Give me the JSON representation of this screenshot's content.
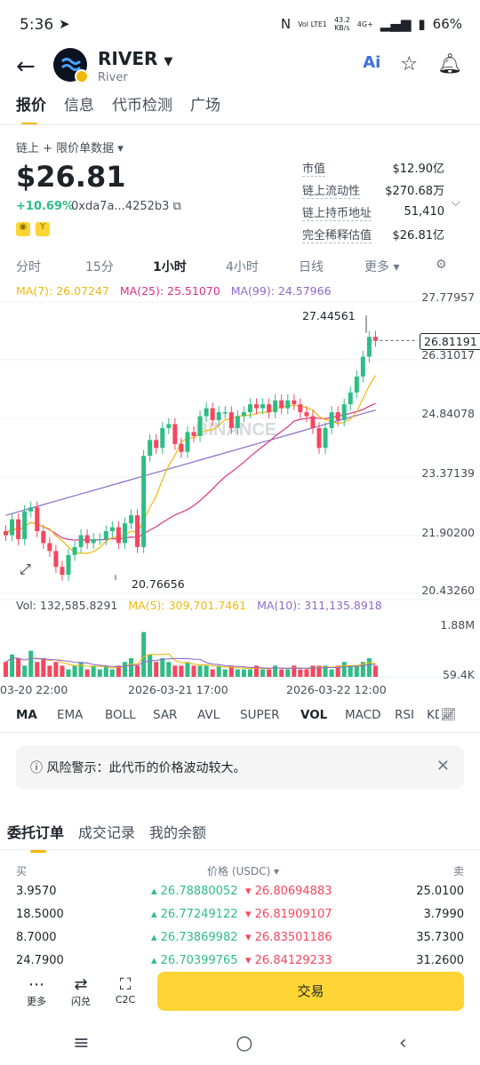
{
  "status": {
    "time": "5:36",
    "battery": "66%",
    "net_speed": "43.2",
    "net_unit": "KB/s",
    "net_type": "4G+",
    "volte": "Vol LTE1"
  },
  "header": {
    "symbol": "RIVER",
    "subtitle": "River"
  },
  "tabs": [
    "报价",
    "信息",
    "代币检测",
    "广场"
  ],
  "data_source": "链上 + 限价单数据",
  "price": "$26.81",
  "change": "+10.69%",
  "contract": "0xda7a...4252b3",
  "stats": [
    {
      "k": "市值",
      "v": "$12.90亿"
    },
    {
      "k": "链上流动性",
      "v": "$270.68万"
    },
    {
      "k": "链上持币地址",
      "v": "51,410"
    },
    {
      "k": "完全稀释估值",
      "v": "$26.81亿"
    }
  ],
  "intervals": [
    "分时",
    "15分",
    "1小时",
    "4小时",
    "日线",
    "更多"
  ],
  "ma": {
    "ma7": "MA(7): 26.07247",
    "ma25": "MA(25): 25.51070",
    "ma99": "MA(99): 24.57966"
  },
  "colors": {
    "ma7": "#f0b90b",
    "ma25": "#d9328a",
    "ma99": "#8e6ac8",
    "up": "#2ebd85",
    "down": "#f6465d"
  },
  "chart": {
    "y_ticks": [
      "27.77957",
      "26.31017",
      "24.84078",
      "23.37139",
      "21.90200",
      "20.43260"
    ],
    "high_label": "27.44561",
    "low_label": "20.76656",
    "current_label": "26.81191",
    "watermark": "BINANCE"
  },
  "volume": {
    "vol": "Vol: 132,585.8291",
    "ma5": "MA(5): 309,701.7461",
    "ma10": "MA(10): 311,135.8918",
    "top": "1.88M",
    "bottom": "59.4K"
  },
  "time_labels": [
    "03-20 22:00",
    "2026-03-21 17:00",
    "2026-03-22 12:00"
  ],
  "indicators": [
    "MA",
    "EMA",
    "BOLL",
    "SAR",
    "AVL",
    "SUPER",
    "VOL",
    "MACD",
    "RSI",
    "KD"
  ],
  "warning": "风险警示：此代币的价格波动较大。",
  "book_tabs": [
    "委托订单",
    "成交记录",
    "我的余额"
  ],
  "orderbook": {
    "head_buy": "买",
    "head_price": "价格 (USDC)",
    "head_sell": "卖",
    "rows": [
      {
        "bq": "3.9570",
        "bp": "26.78880052",
        "sp": "26.80694883",
        "sq": "25.0100"
      },
      {
        "bq": "18.5000",
        "bp": "26.77249122",
        "sp": "26.81909107",
        "sq": "3.7990"
      },
      {
        "bq": "8.7000",
        "bp": "26.73869982",
        "sp": "26.83501186",
        "sq": "35.7300"
      },
      {
        "bq": "24.7900",
        "bp": "26.70399765",
        "sp": "26.84129233",
        "sq": "31.2600"
      }
    ]
  },
  "bottom": {
    "more": "更多",
    "flash": "闪兑",
    "c2c": "C2C",
    "trade": "交易"
  }
}
